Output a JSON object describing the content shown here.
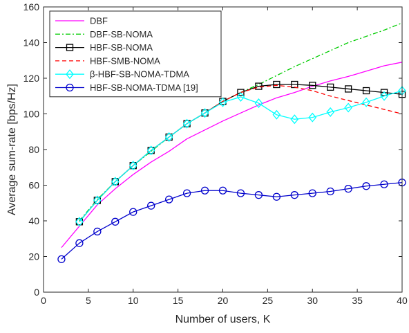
{
  "chart_data": {
    "type": "line",
    "title": "",
    "xlabel": "Number of users, K",
    "ylabel": "Average sum-rate [bps/Hz]",
    "xlim": [
      0,
      40
    ],
    "ylim": [
      0,
      160
    ],
    "xticks": [
      0,
      5,
      10,
      15,
      20,
      25,
      30,
      35,
      40
    ],
    "yticks": [
      0,
      20,
      40,
      60,
      80,
      100,
      120,
      140,
      160
    ],
    "xtick_labels": [
      "0",
      "5",
      "10",
      "15",
      "20",
      "25",
      "30",
      "35",
      "40"
    ],
    "ytick_labels": [
      "0",
      "20",
      "40",
      "60",
      "80",
      "100",
      "120",
      "140",
      "160"
    ],
    "grid": false,
    "box": true,
    "legend_position": "top-left",
    "series": [
      {
        "name": "DBF",
        "color": "#ff00ff",
        "line_style": "solid",
        "marker": "none",
        "x": [
          2,
          4,
          6,
          8,
          10,
          12,
          14,
          16,
          18,
          20,
          22,
          24,
          26,
          28,
          30,
          32,
          34,
          36,
          38,
          40
        ],
        "y": [
          25,
          37,
          49,
          58,
          66,
          73,
          79,
          86,
          91,
          96,
          100.5,
          105,
          109,
          112,
          115.5,
          118.5,
          121,
          124,
          127,
          129
        ]
      },
      {
        "name": "DBF-SB-NOMA",
        "color": "#00cc00",
        "line_style": "dashdot",
        "marker": "none",
        "x": [
          4,
          6,
          8,
          10,
          12,
          14,
          16,
          18,
          20,
          22,
          24,
          26,
          28,
          30,
          32,
          34,
          36,
          38,
          40
        ],
        "y": [
          40,
          52,
          62,
          71,
          79,
          87,
          94.5,
          100.5,
          107,
          112,
          116.5,
          121.5,
          126.5,
          131,
          135.5,
          140,
          143.5,
          147,
          151
        ]
      },
      {
        "name": "HBF-SB-NOMA",
        "color": "#000000",
        "line_style": "solid",
        "marker": "square",
        "x": [
          4,
          6,
          8,
          10,
          12,
          14,
          16,
          18,
          20,
          22,
          24,
          26,
          28,
          30,
          32,
          34,
          36,
          38,
          40
        ],
        "y": [
          39.5,
          51.5,
          62,
          71,
          79.5,
          87,
          94.5,
          100.5,
          107,
          112,
          115.5,
          116.5,
          116.5,
          116,
          115,
          114,
          113,
          112,
          111
        ]
      },
      {
        "name": "HBF-SMB-NOMA",
        "color": "#ff0000",
        "line_style": "dashed",
        "marker": "none",
        "x": [
          4,
          6,
          8,
          10,
          12,
          14,
          16,
          18,
          20,
          22,
          24,
          26,
          28,
          30,
          32,
          34,
          36,
          38,
          40
        ],
        "y": [
          39.5,
          51.5,
          62,
          71,
          79.5,
          87,
          94.5,
          100.5,
          107,
          112,
          115,
          116,
          115,
          113,
          110,
          107.5,
          105,
          102.5,
          100
        ]
      },
      {
        "name": "β-HBF-SB-NOMA-TDMA",
        "color": "#00ffff",
        "line_style": "solid",
        "marker": "diamond",
        "x": [
          4,
          6,
          8,
          10,
          12,
          14,
          16,
          18,
          20,
          22,
          24,
          26,
          28,
          30,
          32,
          34,
          36,
          38,
          40
        ],
        "y": [
          39.5,
          51.5,
          62,
          71,
          79.5,
          87,
          94.5,
          100.5,
          106.5,
          109.5,
          106,
          99.5,
          97,
          98,
          101,
          103.5,
          106.5,
          110,
          113
        ]
      },
      {
        "name": "HBF-SB-NOMA-TDMA [19]",
        "color": "#0000cc",
        "line_style": "solid",
        "marker": "circle",
        "x": [
          2,
          4,
          6,
          8,
          10,
          12,
          14,
          16,
          18,
          20,
          22,
          24,
          26,
          28,
          30,
          32,
          34,
          36,
          38,
          40
        ],
        "y": [
          18.5,
          27.5,
          34,
          39.5,
          45,
          48.5,
          52,
          55.5,
          57,
          57,
          55.5,
          54.5,
          53.5,
          54.5,
          55.5,
          56.5,
          58,
          59.5,
          60.5,
          61.5
        ]
      }
    ]
  }
}
